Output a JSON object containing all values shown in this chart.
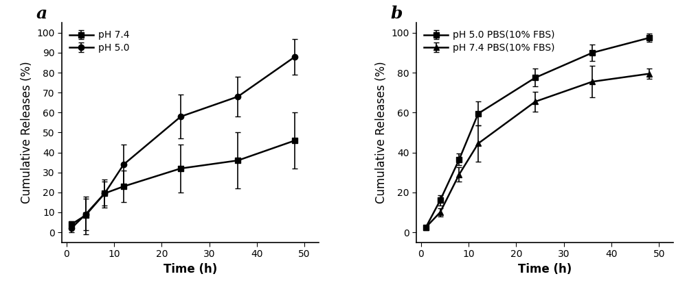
{
  "panel_a": {
    "label": "a",
    "xlabel": "Time (h)",
    "ylabel": "Cumulative Releases (%)",
    "ylim": [
      -5,
      105
    ],
    "yticks": [
      0,
      10,
      20,
      30,
      40,
      50,
      60,
      70,
      80,
      90,
      100
    ],
    "xlim": [
      -1,
      53
    ],
    "xticks": [
      0,
      10,
      20,
      30,
      40,
      50
    ],
    "series": [
      {
        "label": "pH 7.4",
        "marker": "s",
        "x": [
          1,
          4,
          8,
          12,
          24,
          36,
          48
        ],
        "y": [
          4.0,
          8.5,
          19.5,
          23.0,
          32.0,
          36.0,
          46.0
        ],
        "yerr": [
          1.5,
          9.5,
          6.0,
          8.0,
          12.0,
          14.0,
          14.0
        ]
      },
      {
        "label": "pH 5.0",
        "marker": "o",
        "x": [
          1,
          4,
          8,
          12,
          24,
          36,
          48
        ],
        "y": [
          2.0,
          9.0,
          19.5,
          34.0,
          58.0,
          68.0,
          88.0
        ],
        "yerr": [
          2.0,
          8.0,
          7.0,
          10.0,
          11.0,
          10.0,
          9.0
        ]
      }
    ]
  },
  "panel_b": {
    "label": "b",
    "xlabel": "Time (h)",
    "ylabel": "Cumulative Releases (%)",
    "ylim": [
      -5,
      105
    ],
    "yticks": [
      0,
      20,
      40,
      60,
      80,
      100
    ],
    "xlim": [
      -1,
      53
    ],
    "xticks": [
      0,
      10,
      20,
      30,
      40,
      50
    ],
    "series": [
      {
        "label": "pH 5.0 PBS(10% FBS)",
        "marker": "s",
        "x": [
          1,
          4,
          8,
          12,
          24,
          36,
          48
        ],
        "y": [
          2.5,
          16.0,
          36.5,
          59.5,
          77.5,
          90.0,
          97.5
        ],
        "yerr": [
          1.0,
          2.5,
          3.0,
          6.0,
          4.5,
          4.0,
          2.0
        ]
      },
      {
        "label": "pH 7.4 PBS(10% FBS)",
        "marker": "^",
        "x": [
          1,
          4,
          8,
          12,
          24,
          36,
          48
        ],
        "y": [
          2.5,
          10.0,
          29.0,
          44.5,
          65.5,
          75.5,
          79.5
        ],
        "yerr": [
          1.0,
          2.0,
          3.5,
          9.0,
          5.0,
          8.0,
          2.5
        ]
      }
    ]
  },
  "line_color": "#000000",
  "label_fontsize": 12,
  "tick_fontsize": 10,
  "panel_label_fontsize": 18,
  "legend_fontsize": 10,
  "linewidth": 1.8,
  "markersize": 6,
  "capsize": 3,
  "elinewidth": 1.2
}
